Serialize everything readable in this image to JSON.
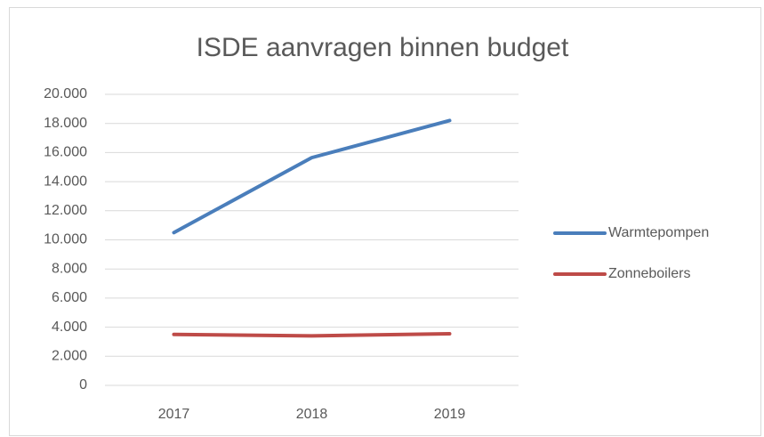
{
  "chart_data": {
    "type": "line",
    "title": "ISDE aanvragen binnen budget",
    "categories": [
      "2017",
      "2018",
      "2019"
    ],
    "series": [
      {
        "name": "Warmtepompen",
        "color": "#4a7ebb",
        "values": [
          10500,
          15650,
          18200
        ]
      },
      {
        "name": "Zonneboilers",
        "color": "#be4b48",
        "values": [
          3500,
          3400,
          3550
        ]
      }
    ],
    "ylim": [
      0,
      20000
    ],
    "yticks": [
      0,
      {
        "value": 2000,
        "label": "2.000"
      },
      {
        "value": 4000,
        "label": "4.000"
      },
      {
        "value": 6000,
        "label": "6.000"
      },
      {
        "value": 8000,
        "label": "8.000"
      },
      {
        "value": 10000,
        "label": "10.000"
      },
      {
        "value": 12000,
        "label": "12.000"
      },
      {
        "value": 14000,
        "label": "14.000"
      },
      {
        "value": 16000,
        "label": "16.000"
      },
      {
        "value": 18000,
        "label": "18.000"
      },
      {
        "value": 20000,
        "label": "20.000"
      }
    ],
    "grid": true,
    "legend": "right"
  }
}
